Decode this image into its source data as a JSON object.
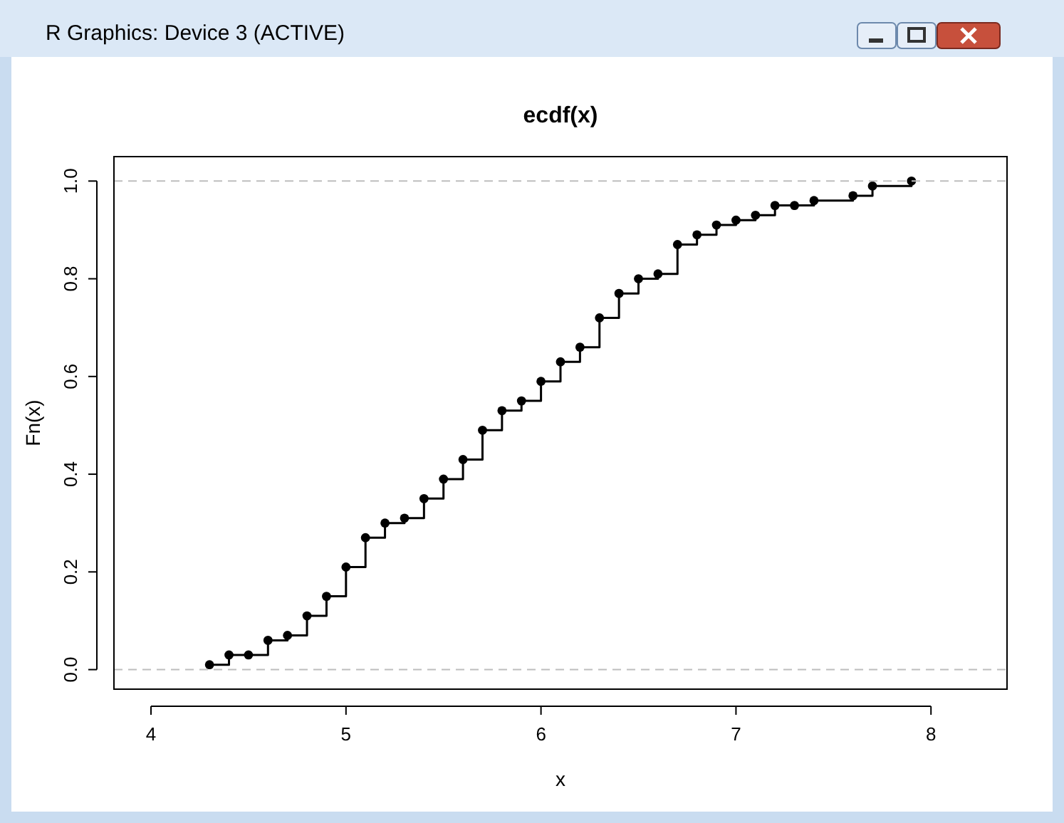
{
  "chart_data": {
    "type": "step",
    "title": "ecdf(x)",
    "xlabel": "x",
    "ylabel": "Fn(x)",
    "annotations": [
      "R Graphics: Device 3 (ACTIVE)"
    ],
    "x": [
      4.3,
      4.4,
      4.5,
      4.6,
      4.7,
      4.8,
      4.9,
      5.0,
      5.1,
      5.2,
      5.3,
      5.4,
      5.5,
      5.6,
      5.7,
      5.8,
      5.9,
      6.0,
      6.1,
      6.2,
      6.3,
      6.4,
      6.5,
      6.6,
      6.7,
      6.8,
      6.9,
      7.0,
      7.1,
      7.2,
      7.3,
      7.4,
      7.6,
      7.7,
      7.9
    ],
    "series": [
      {
        "color": "#000000",
        "values": [
          0.01,
          0.03,
          0.03,
          0.06,
          0.07,
          0.11,
          0.15,
          0.21,
          0.27,
          0.3,
          0.31,
          0.35,
          0.39,
          0.43,
          0.49,
          0.53,
          0.55,
          0.59,
          0.63,
          0.66,
          0.72,
          0.77,
          0.8,
          0.81,
          0.87,
          0.89,
          0.91,
          0.92,
          0.93,
          0.95,
          0.95,
          0.96,
          0.97,
          0.99,
          1.0
        ]
      }
    ],
    "xlim": [
      3.81,
      8.39
    ],
    "ylim": [
      -0.04,
      1.05
    ],
    "xticks": [
      4,
      5,
      6,
      7,
      8
    ],
    "yticks": [
      {
        "value": 0,
        "label": "0.0"
      },
      {
        "value": 0.2,
        "label": "0.2"
      },
      {
        "value": 0.4,
        "label": "0.4"
      },
      {
        "value": 0.6,
        "label": "0.6"
      },
      {
        "value": 0.8,
        "label": "0.8"
      },
      {
        "value": 1,
        "label": "1.0"
      }
    ],
    "ref_lines": [
      {
        "axis": "y",
        "value": 0,
        "color": "#bebebe",
        "line_style": "dashed"
      },
      {
        "axis": "y",
        "value": 1,
        "color": "#bebebe",
        "line_style": "dashed"
      }
    ],
    "marker": "circle"
  }
}
